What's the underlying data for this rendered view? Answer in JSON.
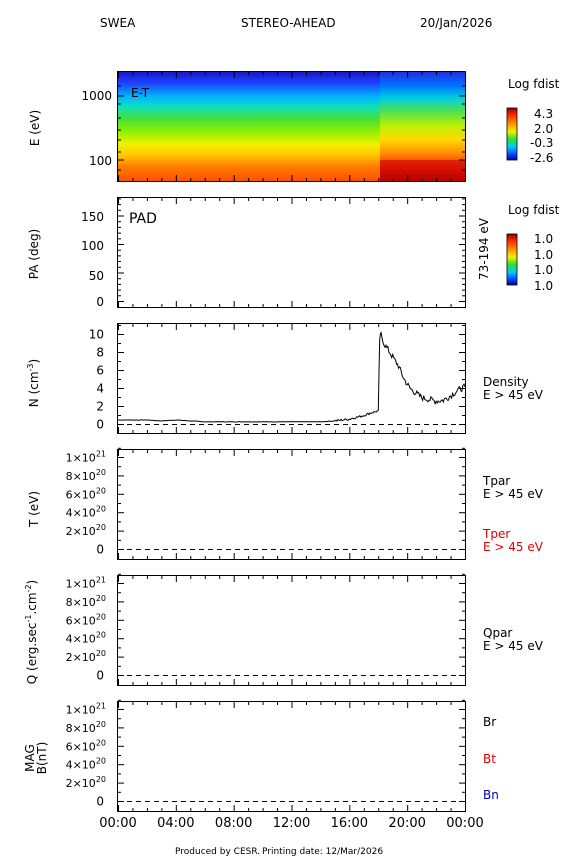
{
  "header": {
    "instrument": "SWEA",
    "spacecraft": "STEREO-AHEAD",
    "date": "20/Jan/2026"
  },
  "footer": {
    "produced_by": "Produced by CESR.",
    "printing_date": "Printing date: 12/Mar/2026"
  },
  "x_axis": {
    "ticks": [
      "00:00",
      "04:00",
      "08:00",
      "12:00",
      "16:00",
      "20:00",
      "00:00"
    ],
    "tick_hours": [
      0,
      4,
      8,
      12,
      16,
      20,
      24
    ],
    "xlim_hours": [
      0,
      24
    ]
  },
  "panels": {
    "energy": {
      "ylabel": "E (eV)",
      "inset_label": "E-T",
      "yticks": [
        "1000",
        "100"
      ],
      "colorbar_title": "Log fdist",
      "colorbar_ticks": [
        "4.3",
        "2.0",
        "-0.3",
        "-2.6"
      ]
    },
    "pad": {
      "ylabel": "PA (deg)",
      "inset_label": "PAD",
      "yticks": [
        "150",
        "100",
        "50",
        "0"
      ],
      "right_label": "73-194 eV",
      "colorbar_title": "Log fdist",
      "colorbar_ticks": [
        "1.0",
        "1.0",
        "1.0",
        "1.0"
      ]
    },
    "density": {
      "ylabel": "N (cm",
      "ylabel_sup": "-3",
      "ylabel_end": ")",
      "yticks": [
        "10",
        "8",
        "6",
        "4",
        "2",
        "0"
      ],
      "legend_1": "Density",
      "legend_2": "E > 45 eV"
    },
    "temperature": {
      "ylabel": "T (eV)",
      "legend_par": "Tpar",
      "legend_par_e": "E > 45 eV",
      "legend_per": "Tper",
      "legend_per_e": "E > 45 eV"
    },
    "heatflux": {
      "ylabel_a": "Q (erg.sec",
      "ylabel_sup1": "-1",
      "ylabel_b": ".cm",
      "ylabel_sup2": "-2",
      "ylabel_c": ")",
      "legend_1": "Qpar",
      "legend_2": "E > 45 eV"
    },
    "mag": {
      "ylabel_1": "MAG",
      "ylabel_2": "B(nT)",
      "legend_br": "Br",
      "legend_bt": "Bt",
      "legend_bn": "Bn"
    }
  },
  "sci_ticks": {
    "mantissas": [
      "1",
      "8",
      "6",
      "4",
      "2"
    ],
    "times": "×10",
    "exponent": "21",
    "exponent_rest": "20",
    "zero": "0"
  },
  "colors": {
    "red_series": "#e00000",
    "blue_series": "#0000c0",
    "line": "#000000"
  },
  "chart_data": {
    "type": "line",
    "title": "SWEA STEREO-AHEAD 20/Jan/2026",
    "x_unit": "hours",
    "series": [
      {
        "name": "Density",
        "x": [
          0,
          1,
          2,
          3,
          4,
          5,
          6,
          7,
          8,
          9,
          10,
          11,
          12,
          13,
          14,
          15,
          16,
          17,
          17.5,
          18,
          18.1,
          18.2,
          18.4,
          18.6,
          19,
          19.4,
          19.8,
          20.2,
          20.6,
          21,
          21.5,
          22,
          22.5,
          23,
          23.5,
          24
        ],
        "y": [
          0.5,
          0.5,
          0.5,
          0.4,
          0.5,
          0.4,
          0.3,
          0.3,
          0.3,
          0.3,
          0.3,
          0.3,
          0.3,
          0.3,
          0.3,
          0.4,
          0.6,
          1.0,
          1.3,
          1.5,
          9.5,
          10.0,
          9.0,
          8.5,
          7.5,
          6.5,
          5.0,
          4.0,
          3.5,
          3.0,
          2.8,
          2.6,
          2.7,
          3.2,
          3.8,
          4.2
        ]
      }
    ],
    "ylim": [
      0,
      11
    ]
  }
}
